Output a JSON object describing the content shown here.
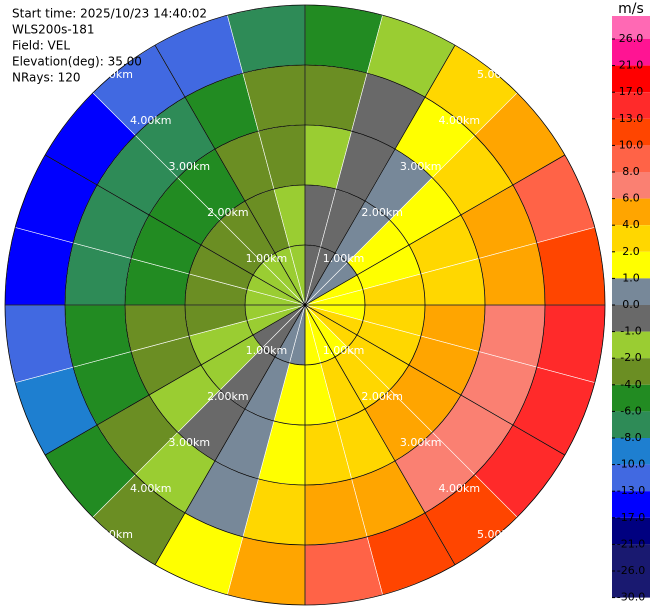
{
  "chart_data": {
    "type": "ppi",
    "info": [
      "Start time: 2025/10/23 14:40:02",
      "WLS200s-181",
      "Field: VEL",
      "Elevation(deg): 35.00",
      "NRays: 120"
    ],
    "rticks": [
      {
        "value": 1,
        "label": "1.00km"
      },
      {
        "value": 2,
        "label": "2.00km"
      },
      {
        "value": 3,
        "label": "3.00km"
      },
      {
        "value": 4,
        "label": "4.00km"
      },
      {
        "value": 5,
        "label": "5.00km"
      }
    ],
    "values": [
      [
        -0.7,
        -0.2,
        0.3,
        0.8,
        1.3,
        1.6,
        1.9,
        2.0,
        2.0,
        1.8,
        1.5,
        1.1,
        0.7,
        0.2,
        -0.3,
        -0.8,
        -1.3,
        -1.6,
        -1.9,
        -2.0,
        -2.0,
        -1.8,
        -1.5,
        -1.1
      ],
      [
        -1.0,
        -0.3,
        0.5,
        1.3,
        1.9,
        2.5,
        2.8,
        3.0,
        2.9,
        2.7,
        2.3,
        1.7,
        1.0,
        0.3,
        -0.5,
        -1.3,
        -1.9,
        -2.5,
        -2.8,
        -3.0,
        -2.9,
        -2.7,
        -2.3,
        -1.7
      ],
      [
        -1.5,
        -0.4,
        0.8,
        1.9,
        2.9,
        3.7,
        4.2,
        4.5,
        4.4,
        4.1,
        3.5,
        2.6,
        1.5,
        0.4,
        -0.8,
        -1.9,
        -2.9,
        -3.7,
        -4.2,
        -4.5,
        -4.4,
        -4.1,
        -3.5,
        -2.6
      ],
      [
        -2.4,
        -0.6,
        1.2,
        2.9,
        4.5,
        5.7,
        6.6,
        7.0,
        6.9,
        6.4,
        5.4,
        4.0,
        2.4,
        0.6,
        -1.2,
        -2.9,
        -4.5,
        -5.7,
        -6.6,
        -7.0,
        -6.9,
        -6.4,
        -5.4,
        -4.0
      ],
      [
        -4.8,
        -1.3,
        2.4,
        5.9,
        9.0,
        11.5,
        13.2,
        14.0,
        13.7,
        12.7,
        10.8,
        8.0,
        4.8,
        1.3,
        -2.4,
        -5.9,
        -9.0,
        -11.5,
        -13.2,
        -14.0,
        -13.7,
        -12.7,
        -10.8,
        -8.0
      ]
    ],
    "colorbar": {
      "units": "m/s",
      "ticks": [
        {
          "value": 26,
          "label": "26.0"
        },
        {
          "value": 21,
          "label": "21.0"
        },
        {
          "value": 17,
          "label": "17.0"
        },
        {
          "value": 13,
          "label": "13.0"
        },
        {
          "value": 10,
          "label": "10.0"
        },
        {
          "value": 8,
          "label": "8.0"
        },
        {
          "value": 6,
          "label": "6.0"
        },
        {
          "value": 4,
          "label": "4.0"
        },
        {
          "value": 2,
          "label": "2.0"
        },
        {
          "value": 1,
          "label": "1.0"
        },
        {
          "value": 0,
          "label": "0.0"
        },
        {
          "value": -1,
          "label": "-1.0"
        },
        {
          "value": -2,
          "label": "-2.0"
        },
        {
          "value": -4,
          "label": "-4.0"
        },
        {
          "value": -6,
          "label": "-6.0"
        },
        {
          "value": -8,
          "label": "-8.0"
        },
        {
          "value": -10,
          "label": "-10.0"
        },
        {
          "value": -13,
          "label": "-13.0"
        },
        {
          "value": -17,
          "label": "-17.0"
        },
        {
          "value": -21,
          "label": "-21.0"
        },
        {
          "value": -26,
          "label": "-26.0"
        },
        {
          "value": -30,
          "label": "-30.0"
        }
      ],
      "colors": [
        "#ff69b4",
        "#ff1493",
        "#ff0000",
        "#ff2a2a",
        "#ff4500",
        "#ff6347",
        "#fa8072",
        "#ffa500",
        "#ffd700",
        "#ffff00",
        "#778899",
        "#696969",
        "#9acd32",
        "#6b8e23",
        "#228b22",
        "#2e8b57",
        "#1e7fd0",
        "#4169e1",
        "#0000ff",
        "#000080",
        "#191970",
        "#191970"
      ]
    }
  }
}
